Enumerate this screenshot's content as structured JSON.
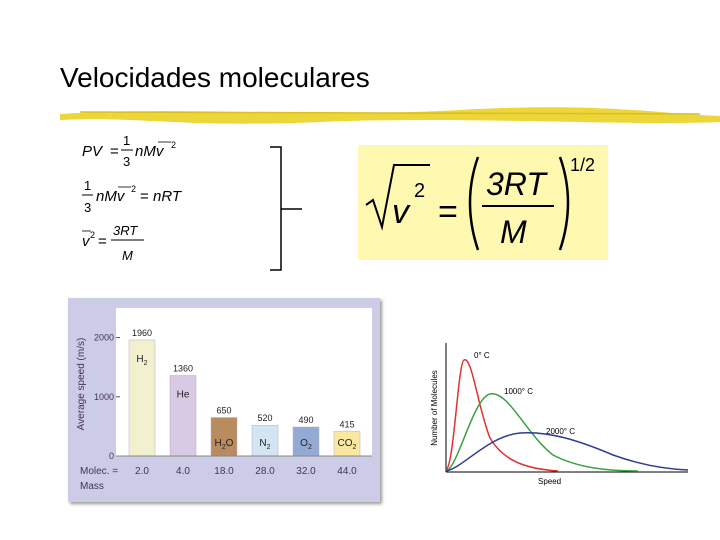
{
  "slide": {
    "title": "Velocidades moleculares",
    "formula": {
      "lhs_radicand": "v",
      "lhs_exp": "2",
      "numerator": "3RT",
      "denominator": "M",
      "exponent": "1/2"
    }
  },
  "equations": [
    {
      "lhs": "PV",
      "frac_num": "1",
      "frac_den": "3",
      "rhs": "nMv"
    },
    {
      "lhs_frac_num": "1",
      "lhs_frac_den": "3",
      "lhs": "nMv",
      "rhs": "nRT"
    },
    {
      "lhs": "v",
      "frac_num": "3RT",
      "frac_den": "M"
    }
  ],
  "bar_chart": {
    "ylabel": "Average speed (m/s)",
    "yticks": [
      0,
      1000,
      2000
    ],
    "xlabel_line1": "Molec. =",
    "xlabel_line2": "Mass",
    "bars": [
      {
        "gas": "H",
        "sub": "2",
        "value": 1960,
        "value_label": "1960",
        "mass": "2.0",
        "color": "#f3f0cf"
      },
      {
        "gas": "He",
        "sub": "",
        "value": 1360,
        "value_label": "1360",
        "mass": "4.0",
        "color": "#d8c9e4"
      },
      {
        "gas": "H",
        "sub": "2",
        "gas2": "O",
        "value": 650,
        "value_label": "650",
        "mass": "18.0",
        "color": "#b88c5e"
      },
      {
        "gas": "N",
        "sub": "2",
        "value": 520,
        "value_label": "520",
        "mass": "28.0",
        "color": "#d3e4f3"
      },
      {
        "gas": "O",
        "sub": "2",
        "value": 490,
        "value_label": "490",
        "mass": "32.0",
        "color": "#93aad4"
      },
      {
        "gas": "CO",
        "sub": "2",
        "value": 415,
        "value_label": "415",
        "mass": "44.0",
        "color": "#fae8a0"
      }
    ]
  },
  "distribution": {
    "ylabel": "Number of Molecules",
    "xlabel": "Speed",
    "curves": [
      {
        "label": "0° C",
        "color": "#e53030"
      },
      {
        "label": "1000° C",
        "color": "#3aa040"
      },
      {
        "label": "2000° C",
        "color": "#303a90"
      }
    ]
  }
}
